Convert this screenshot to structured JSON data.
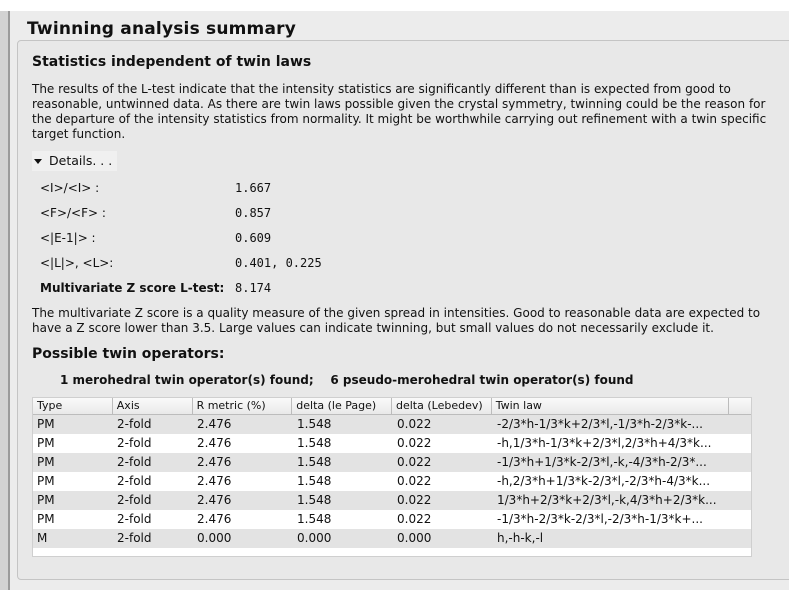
{
  "title": "Twinning analysis summary",
  "section1": {
    "heading": "Statistics independent of twin laws",
    "text": "The results of the L-test indicate that the intensity statistics are significantly different than is expected from good to reasonable, untwinned data. As there are twin laws possible given the crystal symmetry, twinning could be the reason for the departure of the intensity statistics from normality. It might be worthwhile carrying out refinement with a twin specific target function.",
    "details_label": "Details. . .",
    "stats": [
      {
        "label": "<I>/<I> :",
        "value": "1.667"
      },
      {
        "label": "<F>/<F> :",
        "value": "0.857"
      },
      {
        "label": "<|E-1|>  :",
        "value": "0.609"
      },
      {
        "label": "<|L|>, <L>:",
        "value": "0.401, 0.225"
      },
      {
        "label": "Multivariate Z score L-test:",
        "value": "8.174"
      }
    ],
    "z_note": "The multivariate Z score is a quality measure of the given spread in intensities. Good to reasonable data are expected to have a Z score lower than 3.5. Large values can indicate twinning, but small values do not necessarily exclude it."
  },
  "section2": {
    "heading": "Possible twin operators:",
    "found": "1 merohedral twin operator(s) found;    6 pseudo-merohedral twin operator(s) found",
    "columns": [
      "Type",
      "Axis",
      "R metric (%)",
      "delta (le Page)",
      "delta (Lebedev)",
      "Twin law"
    ],
    "rows": [
      [
        "PM",
        "2-fold",
        "2.476",
        "1.548",
        "0.022",
        "-2/3*h-1/3*k+2/3*l,-1/3*h-2/3*k-..."
      ],
      [
        "PM",
        "2-fold",
        "2.476",
        "1.548",
        "0.022",
        "-h,1/3*h-1/3*k+2/3*l,2/3*h+4/3*k..."
      ],
      [
        "PM",
        "2-fold",
        "2.476",
        "1.548",
        "0.022",
        "-1/3*h+1/3*k-2/3*l,-k,-4/3*h-2/3*..."
      ],
      [
        "PM",
        "2-fold",
        "2.476",
        "1.548",
        "0.022",
        "-h,2/3*h+1/3*k-2/3*l,-2/3*h-4/3*k..."
      ],
      [
        "PM",
        "2-fold",
        "2.476",
        "1.548",
        "0.022",
        "1/3*h+2/3*k+2/3*l,-k,4/3*h+2/3*k..."
      ],
      [
        "PM",
        "2-fold",
        "2.476",
        "1.548",
        "0.022",
        "-1/3*h-2/3*k-2/3*l,-2/3*h-1/3*k+..."
      ],
      [
        " M",
        "2-fold",
        "0.000",
        "0.000",
        "0.000",
        "h,-h-k,-l"
      ]
    ]
  }
}
